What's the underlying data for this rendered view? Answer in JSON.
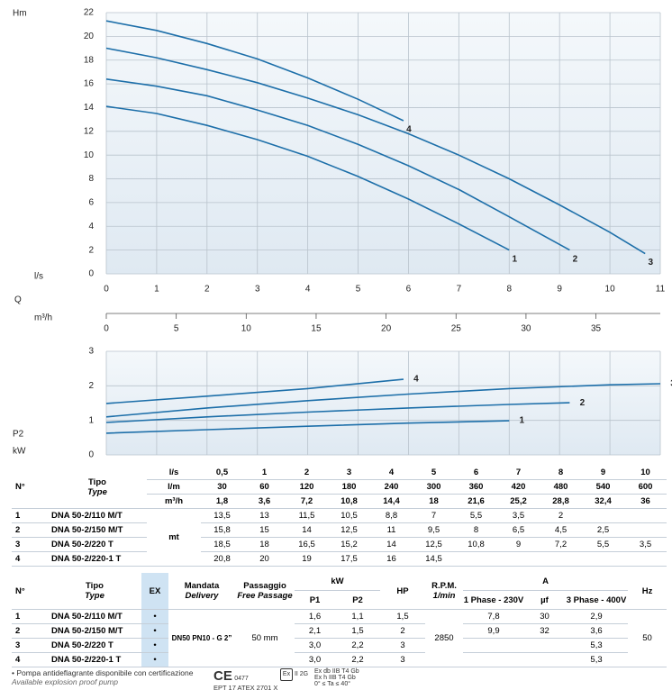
{
  "chart_data": [
    {
      "type": "line",
      "y_label": "Hm",
      "x_label": "l/s",
      "axis_title": "Q",
      "x2_label": "m³/h",
      "xlim": [
        0,
        11
      ],
      "xticks": [
        0,
        1,
        2,
        3,
        4,
        5,
        6,
        7,
        8,
        9,
        10,
        11
      ],
      "x2lim": [
        0,
        39.6
      ],
      "x2ticks": [
        0,
        5,
        10,
        15,
        20,
        25,
        30,
        35
      ],
      "ylim": [
        0,
        22
      ],
      "yticks": [
        0,
        2,
        4,
        6,
        8,
        10,
        12,
        14,
        16,
        18,
        20,
        22
      ],
      "grid": true,
      "series": [
        {
          "name": "1",
          "color": "#1d6fa9",
          "x": [
            0,
            1,
            2,
            3,
            4,
            5,
            6,
            7,
            8
          ],
          "values": [
            14.1,
            13.5,
            12.5,
            11.3,
            9.9,
            8.2,
            6.3,
            4.2,
            2.0
          ]
        },
        {
          "name": "2",
          "color": "#1d6fa9",
          "x": [
            0,
            1,
            2,
            3,
            4,
            5,
            6,
            7,
            8,
            9.2
          ],
          "values": [
            16.4,
            15.8,
            15,
            13.8,
            12.5,
            10.9,
            9.1,
            7.1,
            4.8,
            2.0
          ]
        },
        {
          "name": "3",
          "color": "#1d6fa9",
          "x": [
            0,
            1,
            2,
            3,
            4,
            5,
            6,
            7,
            8,
            9,
            10,
            10.7
          ],
          "values": [
            19,
            18.2,
            17.2,
            16.1,
            14.8,
            13.4,
            11.8,
            10,
            8,
            5.8,
            3.5,
            1.7
          ]
        },
        {
          "name": "4",
          "color": "#1d6fa9",
          "x": [
            0,
            1,
            2,
            3,
            4,
            5,
            5.9
          ],
          "values": [
            21.3,
            20.5,
            19.4,
            18.1,
            16.5,
            14.7,
            12.9
          ]
        }
      ]
    },
    {
      "type": "line",
      "y_label": "P2",
      "y_unit": "kW",
      "xlim": [
        0,
        11
      ],
      "xticks": [
        0,
        1,
        2,
        3,
        4,
        5,
        6,
        7,
        8,
        9,
        10,
        11
      ],
      "ylim": [
        0,
        3
      ],
      "yticks": [
        0,
        1,
        2,
        3
      ],
      "grid": true,
      "series": [
        {
          "name": "1",
          "color": "#1d6fa9",
          "x": [
            0,
            2,
            4,
            6,
            8
          ],
          "values": [
            0.63,
            0.73,
            0.83,
            0.92,
            0.99
          ]
        },
        {
          "name": "2",
          "color": "#1d6fa9",
          "x": [
            0,
            2,
            4,
            6,
            8,
            9.2
          ],
          "values": [
            0.94,
            1.1,
            1.24,
            1.36,
            1.46,
            1.51
          ]
        },
        {
          "name": "3",
          "color": "#1d6fa9",
          "x": [
            0,
            2,
            4,
            6,
            8,
            10,
            11
          ],
          "values": [
            1.1,
            1.36,
            1.57,
            1.76,
            1.92,
            2.03,
            2.06
          ]
        },
        {
          "name": "4",
          "color": "#1d6fa9",
          "x": [
            0,
            2,
            4,
            5.9
          ],
          "values": [
            1.49,
            1.7,
            1.92,
            2.19
          ]
        }
      ]
    }
  ],
  "table1": {
    "number_header": "N°",
    "type_header": "Tipo",
    "type_header_en": "Type",
    "flow_units": [
      "l/s",
      "l/m",
      "m³/h"
    ],
    "flow": [
      [
        "0,5",
        "1",
        "2",
        "3",
        "4",
        "5",
        "6",
        "7",
        "8",
        "9",
        "10"
      ],
      [
        "30",
        "60",
        "120",
        "180",
        "240",
        "300",
        "360",
        "420",
        "480",
        "540",
        "600"
      ],
      [
        "1,8",
        "3,6",
        "7,2",
        "10,8",
        "14,4",
        "18",
        "21,6",
        "25,2",
        "28,8",
        "32,4",
        "36"
      ]
    ],
    "head_unit": "mt",
    "rows": [
      {
        "number": "1",
        "model": "DNA 50-2/110 M/T",
        "head": [
          "13,5",
          "13",
          "11,5",
          "10,5",
          "8,8",
          "7",
          "5,5",
          "3,5",
          "2",
          null,
          null
        ]
      },
      {
        "number": "2",
        "model": "DNA 50-2/150 M/T",
        "head": [
          "15,8",
          "15",
          "14",
          "12,5",
          "11",
          "9,5",
          "8",
          "6,5",
          "4,5",
          "2,5",
          null
        ]
      },
      {
        "number": "3",
        "model": "DNA 50-2/220 T",
        "head": [
          "18,5",
          "18",
          "16,5",
          "15,2",
          "14",
          "12,5",
          "10,8",
          "9",
          "7,2",
          "5,5",
          "3,5"
        ]
      },
      {
        "number": "4",
        "model": "DNA 50-2/220-1 T",
        "head": [
          "20,8",
          "20",
          "19",
          "17,5",
          "16",
          "14,5",
          null,
          null,
          null,
          null,
          null
        ]
      }
    ]
  },
  "table2": {
    "headers": {
      "number": "N°",
      "type": "Tipo",
      "type_en": "Type",
      "ex": "EX",
      "delivery": "Mandata",
      "delivery_en": "Delivery",
      "passage": "Passaggio",
      "passage_en": "Free Passage",
      "kw": "kW",
      "p1": "P1",
      "p2": "P2",
      "hp": "HP",
      "rpm": "R.P.M.",
      "rpm_unit": "1/min",
      "amps": "A",
      "a_1ph": "1 Phase - 230V",
      "uf": "µf",
      "a_3ph": "3 Phase - 400V",
      "hz": "Hz"
    },
    "delivery": "DN50 PN10 - G 2”",
    "passage": "50 mm",
    "rpm": "2850",
    "hz": "50",
    "rows": [
      {
        "number": "1",
        "model": "DNA 50-2/110 M/T",
        "ex": "•",
        "p1": "1,6",
        "p2": "1,1",
        "hp": "1,5",
        "a_1ph": "7,8",
        "uf": "30",
        "a_3ph": "2,9"
      },
      {
        "number": "2",
        "model": "DNA 50-2/150 M/T",
        "ex": "•",
        "p1": "2,1",
        "p2": "1,5",
        "hp": "2",
        "a_1ph": "9,9",
        "uf": "32",
        "a_3ph": "3,6"
      },
      {
        "number": "3",
        "model": "DNA 50-2/220 T",
        "ex": "•",
        "p1": "3,0",
        "p2": "2,2",
        "hp": "3",
        "a_1ph": null,
        "uf": null,
        "a_3ph": "5,3"
      },
      {
        "number": "4",
        "model": "DNA 50-2/220-1 T",
        "ex": "•",
        "p1": "3,0",
        "p2": "2,2",
        "hp": "3",
        "a_1ph": null,
        "uf": null,
        "a_3ph": "5,3"
      }
    ]
  },
  "footer": {
    "note": "• Pompa antideflagrante disponibile con certificazione",
    "note_en": "Available explosion proof pump",
    "ce": "CE",
    "ce_number": "0477",
    "atex": "EPT 17 ATEX 2701 X",
    "ex_logo": "Ex",
    "group": "II 2G",
    "marking1": "Ex db IIB T4 Gb",
    "marking2": "Ex h IIB T4 Gb",
    "temperature": "0° ≤ Ta ≤ 40°"
  }
}
